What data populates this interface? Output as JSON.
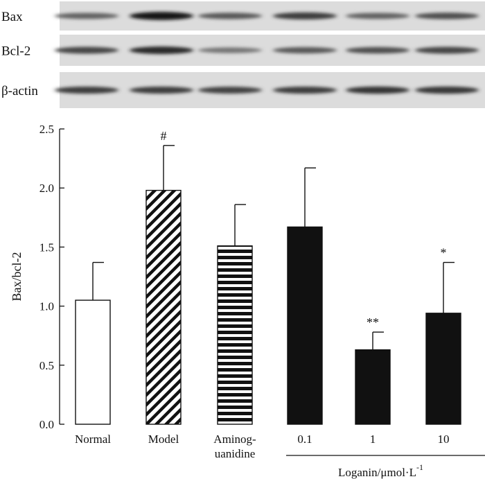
{
  "blot": {
    "rows": [
      {
        "label": "Bax",
        "band_intensity": [
          0.55,
          0.95,
          0.6,
          0.75,
          0.55,
          0.65
        ]
      },
      {
        "label": "Bcl-2",
        "band_intensity": [
          0.7,
          0.85,
          0.45,
          0.6,
          0.65,
          0.7
        ]
      },
      {
        "label": "β-actin",
        "band_intensity": [
          0.75,
          0.75,
          0.72,
          0.75,
          0.8,
          0.78
        ]
      }
    ]
  },
  "chart_data": {
    "type": "bar",
    "categories": [
      "Normal",
      "Model",
      "Aminog-\nuanidine",
      "0.1",
      "1",
      "10"
    ],
    "values": [
      1.05,
      1.98,
      1.51,
      1.67,
      0.63,
      0.94
    ],
    "errors": [
      0.32,
      0.38,
      0.35,
      0.5,
      0.15,
      0.43
    ],
    "annotations": [
      "",
      "#",
      "",
      "",
      "**",
      "*"
    ],
    "fills": [
      "white",
      "diagonal-hatch",
      "horizontal-stripes",
      "black",
      "black",
      "black"
    ],
    "ylabel": "Bax/bcl-2",
    "ylim": [
      0,
      2.5
    ],
    "yticks": [
      "0.0",
      "0.5",
      "1.0",
      "1.5",
      "2.0",
      "2.5"
    ],
    "group_label": "Loganin/μmol·L",
    "group_label_sup": "-1",
    "grid": false
  }
}
